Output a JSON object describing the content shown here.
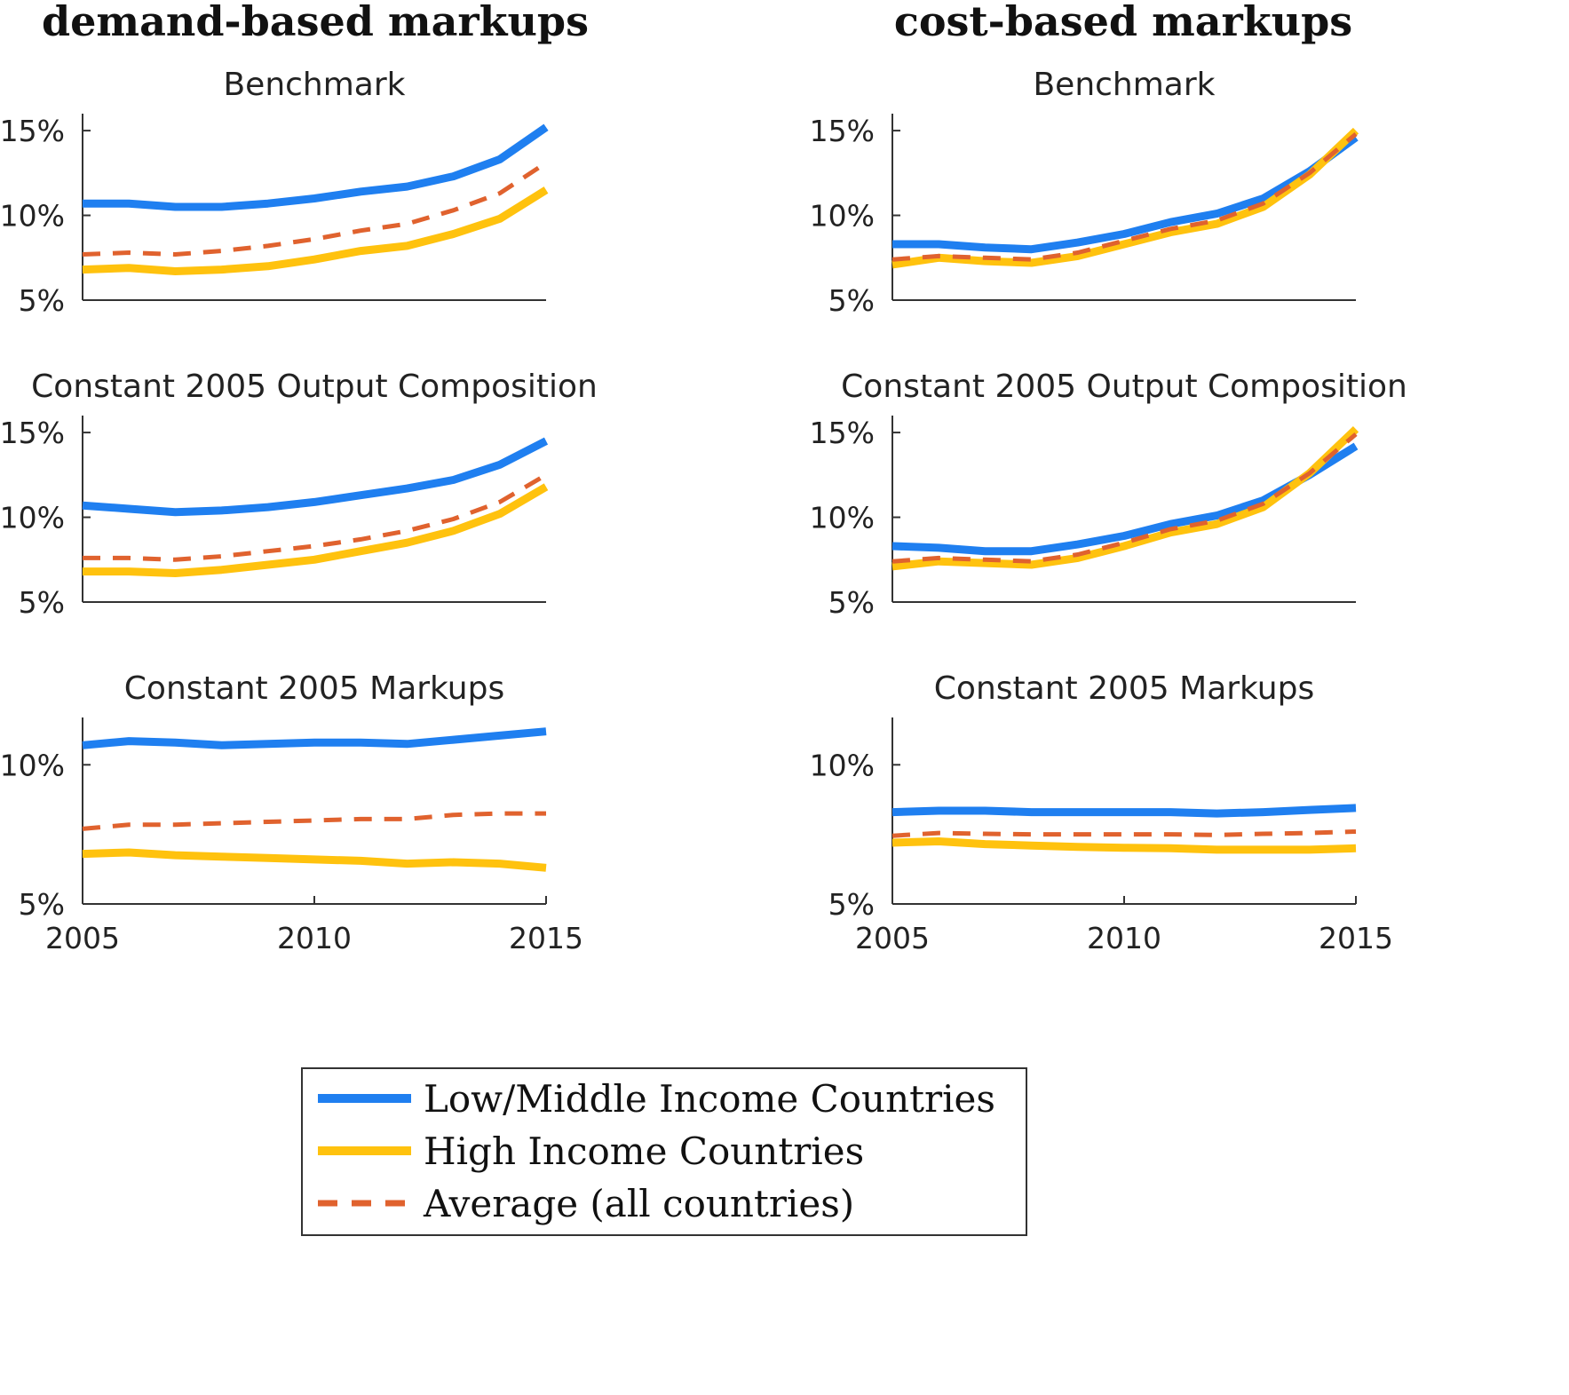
{
  "columns": [
    {
      "title": "demand-based markups"
    },
    {
      "title": "cost-based markups"
    }
  ],
  "legend": {
    "items": [
      {
        "label": "Low/Middle Income Countries",
        "color": "#1f7ff0",
        "style": "solid"
      },
      {
        "label": "High Income Countries",
        "color": "#ffc20e",
        "style": "solid"
      },
      {
        "label": "Average (all countries)",
        "color": "#e0622e",
        "style": "dashed"
      }
    ]
  },
  "chart_data": [
    {
      "type": "line",
      "column": 0,
      "row": 0,
      "title": "Benchmark",
      "x": [
        2005,
        2006,
        2007,
        2008,
        2009,
        2010,
        2011,
        2012,
        2013,
        2014,
        2015
      ],
      "xlim": [
        2005,
        2015
      ],
      "ylim": [
        5,
        16
      ],
      "yticks": [
        {
          "v": 5,
          "label": "5%"
        },
        {
          "v": 10,
          "label": "10%"
        },
        {
          "v": 15,
          "label": "15%"
        }
      ],
      "xticks": [],
      "series": [
        {
          "name": "Low/Middle Income Countries",
          "values": [
            10.7,
            10.7,
            10.5,
            10.5,
            10.7,
            11.0,
            11.4,
            11.7,
            12.3,
            13.3,
            15.2
          ]
        },
        {
          "name": "High Income Countries",
          "values": [
            6.8,
            6.9,
            6.7,
            6.8,
            7.0,
            7.4,
            7.9,
            8.2,
            8.9,
            9.8,
            11.5
          ]
        },
        {
          "name": "Average (all countries)",
          "values": [
            7.7,
            7.8,
            7.7,
            7.9,
            8.2,
            8.6,
            9.1,
            9.5,
            10.3,
            11.3,
            13.1
          ]
        }
      ]
    },
    {
      "type": "line",
      "column": 0,
      "row": 1,
      "title": "Constant 2005 Output Composition",
      "x": [
        2005,
        2006,
        2007,
        2008,
        2009,
        2010,
        2011,
        2012,
        2013,
        2014,
        2015
      ],
      "xlim": [
        2005,
        2015
      ],
      "ylim": [
        5,
        16
      ],
      "yticks": [
        {
          "v": 5,
          "label": "5%"
        },
        {
          "v": 10,
          "label": "10%"
        },
        {
          "v": 15,
          "label": "15%"
        }
      ],
      "xticks": [],
      "series": [
        {
          "name": "Low/Middle Income Countries",
          "values": [
            10.7,
            10.5,
            10.3,
            10.4,
            10.6,
            10.9,
            11.3,
            11.7,
            12.2,
            13.1,
            14.5
          ]
        },
        {
          "name": "High Income Countries",
          "values": [
            6.8,
            6.8,
            6.7,
            6.9,
            7.2,
            7.5,
            8.0,
            8.5,
            9.2,
            10.2,
            11.8
          ]
        },
        {
          "name": "Average (all countries)",
          "values": [
            7.6,
            7.6,
            7.5,
            7.7,
            8.0,
            8.3,
            8.7,
            9.2,
            9.9,
            10.9,
            12.5
          ]
        }
      ]
    },
    {
      "type": "line",
      "column": 0,
      "row": 2,
      "title": "Constant 2005 Markups",
      "x": [
        2005,
        2006,
        2007,
        2008,
        2009,
        2010,
        2011,
        2012,
        2013,
        2014,
        2015
      ],
      "xlim": [
        2005,
        2015
      ],
      "ylim": [
        5,
        11.7
      ],
      "yticks": [
        {
          "v": 5,
          "label": "5%"
        },
        {
          "v": 10,
          "label": "10%"
        }
      ],
      "xticks": [
        {
          "v": 2005,
          "label": "2005"
        },
        {
          "v": 2010,
          "label": "2010"
        },
        {
          "v": 2015,
          "label": "2015"
        }
      ],
      "series": [
        {
          "name": "Low/Middle Income Countries",
          "values": [
            10.7,
            10.85,
            10.8,
            10.7,
            10.75,
            10.8,
            10.8,
            10.75,
            10.9,
            11.05,
            11.2
          ]
        },
        {
          "name": "High Income Countries",
          "values": [
            6.8,
            6.85,
            6.75,
            6.7,
            6.65,
            6.6,
            6.55,
            6.45,
            6.5,
            6.45,
            6.3
          ]
        },
        {
          "name": "Average (all countries)",
          "values": [
            7.7,
            7.85,
            7.85,
            7.9,
            7.95,
            8.0,
            8.05,
            8.05,
            8.2,
            8.25,
            8.25
          ]
        }
      ]
    },
    {
      "type": "line",
      "column": 1,
      "row": 0,
      "title": "Benchmark",
      "x": [
        2005,
        2006,
        2007,
        2008,
        2009,
        2010,
        2011,
        2012,
        2013,
        2014,
        2015
      ],
      "xlim": [
        2005,
        2015
      ],
      "ylim": [
        5,
        16
      ],
      "yticks": [
        {
          "v": 5,
          "label": "5%"
        },
        {
          "v": 10,
          "label": "10%"
        },
        {
          "v": 15,
          "label": "15%"
        }
      ],
      "xticks": [],
      "series": [
        {
          "name": "Low/Middle Income Countries",
          "values": [
            8.3,
            8.3,
            8.1,
            8.0,
            8.4,
            8.9,
            9.6,
            10.1,
            11.0,
            12.6,
            14.6
          ]
        },
        {
          "name": "High Income Countries",
          "values": [
            7.1,
            7.5,
            7.3,
            7.2,
            7.6,
            8.3,
            9.0,
            9.5,
            10.5,
            12.4,
            15.0
          ]
        },
        {
          "name": "Average (all countries)",
          "values": [
            7.4,
            7.6,
            7.5,
            7.4,
            7.8,
            8.5,
            9.2,
            9.7,
            10.7,
            12.5,
            14.8
          ]
        }
      ]
    },
    {
      "type": "line",
      "column": 1,
      "row": 1,
      "title": "Constant 2005 Output Composition",
      "x": [
        2005,
        2006,
        2007,
        2008,
        2009,
        2010,
        2011,
        2012,
        2013,
        2014,
        2015
      ],
      "xlim": [
        2005,
        2015
      ],
      "ylim": [
        5,
        16
      ],
      "yticks": [
        {
          "v": 5,
          "label": "5%"
        },
        {
          "v": 10,
          "label": "10%"
        },
        {
          "v": 15,
          "label": "15%"
        }
      ],
      "xticks": [],
      "series": [
        {
          "name": "Low/Middle Income Countries",
          "values": [
            8.3,
            8.2,
            8.0,
            8.0,
            8.4,
            8.9,
            9.6,
            10.1,
            11.0,
            12.5,
            14.2
          ]
        },
        {
          "name": "High Income Countries",
          "values": [
            7.1,
            7.4,
            7.3,
            7.2,
            7.6,
            8.3,
            9.1,
            9.6,
            10.6,
            12.6,
            15.2
          ]
        },
        {
          "name": "Average (all countries)",
          "values": [
            7.4,
            7.6,
            7.5,
            7.4,
            7.8,
            8.5,
            9.3,
            9.8,
            10.8,
            12.6,
            14.9
          ]
        }
      ]
    },
    {
      "type": "line",
      "column": 1,
      "row": 2,
      "title": "Constant 2005 Markups",
      "x": [
        2005,
        2006,
        2007,
        2008,
        2009,
        2010,
        2011,
        2012,
        2013,
        2014,
        2015
      ],
      "xlim": [
        2005,
        2015
      ],
      "ylim": [
        5,
        11.7
      ],
      "yticks": [
        {
          "v": 5,
          "label": "5%"
        },
        {
          "v": 10,
          "label": "10%"
        }
      ],
      "xticks": [
        {
          "v": 2005,
          "label": "2005"
        },
        {
          "v": 2010,
          "label": "2010"
        },
        {
          "v": 2015,
          "label": "2015"
        }
      ],
      "series": [
        {
          "name": "Low/Middle Income Countries",
          "values": [
            8.3,
            8.35,
            8.35,
            8.3,
            8.3,
            8.3,
            8.3,
            8.25,
            8.3,
            8.38,
            8.45
          ]
        },
        {
          "name": "High Income Countries",
          "values": [
            7.2,
            7.25,
            7.15,
            7.1,
            7.05,
            7.02,
            7.0,
            6.95,
            6.95,
            6.95,
            7.0
          ]
        },
        {
          "name": "Average (all countries)",
          "values": [
            7.45,
            7.55,
            7.52,
            7.5,
            7.5,
            7.5,
            7.5,
            7.48,
            7.52,
            7.55,
            7.6
          ]
        }
      ]
    }
  ]
}
